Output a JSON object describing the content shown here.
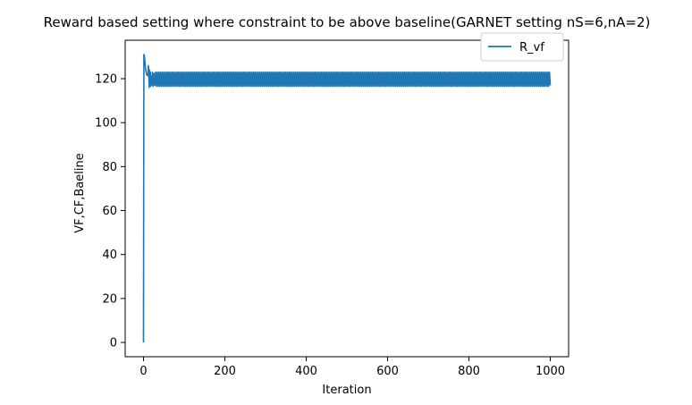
{
  "chart_data": {
    "type": "line",
    "title": "Reward based setting where constraint to be above baseline(GARNET setting nS=6,nA=2)",
    "xlabel": "Iteration",
    "ylabel": "VF,CF,Baeline",
    "xlim": [
      -45,
      1045
    ],
    "ylim": [
      -6.5,
      137.5
    ],
    "xticks": [
      0,
      200,
      400,
      600,
      800,
      1000
    ],
    "yticks": [
      0,
      20,
      40,
      60,
      80,
      100,
      120
    ],
    "grid": false,
    "legend_position": "upper right",
    "series": [
      {
        "name": "R_vf",
        "color": "#1f77b4",
        "x": [
          0,
          1,
          2,
          3,
          4,
          5,
          6,
          7,
          8,
          9,
          10,
          11,
          12,
          13,
          14,
          15,
          16,
          17,
          18,
          19,
          20,
          22,
          24,
          26,
          28,
          30
        ],
        "values": [
          0,
          131,
          130.5,
          129,
          127,
          125,
          123.5,
          122.5,
          121.8,
          121.5,
          121.5,
          122,
          126,
          123,
          116,
          124,
          117,
          123,
          116.5,
          121,
          117,
          123,
          116.5,
          122.5,
          117,
          123
        ],
        "oscillation": {
          "x_start": 30,
          "x_end": 1000,
          "upper": 123,
          "lower": 116.5,
          "final": 117
        }
      }
    ]
  }
}
